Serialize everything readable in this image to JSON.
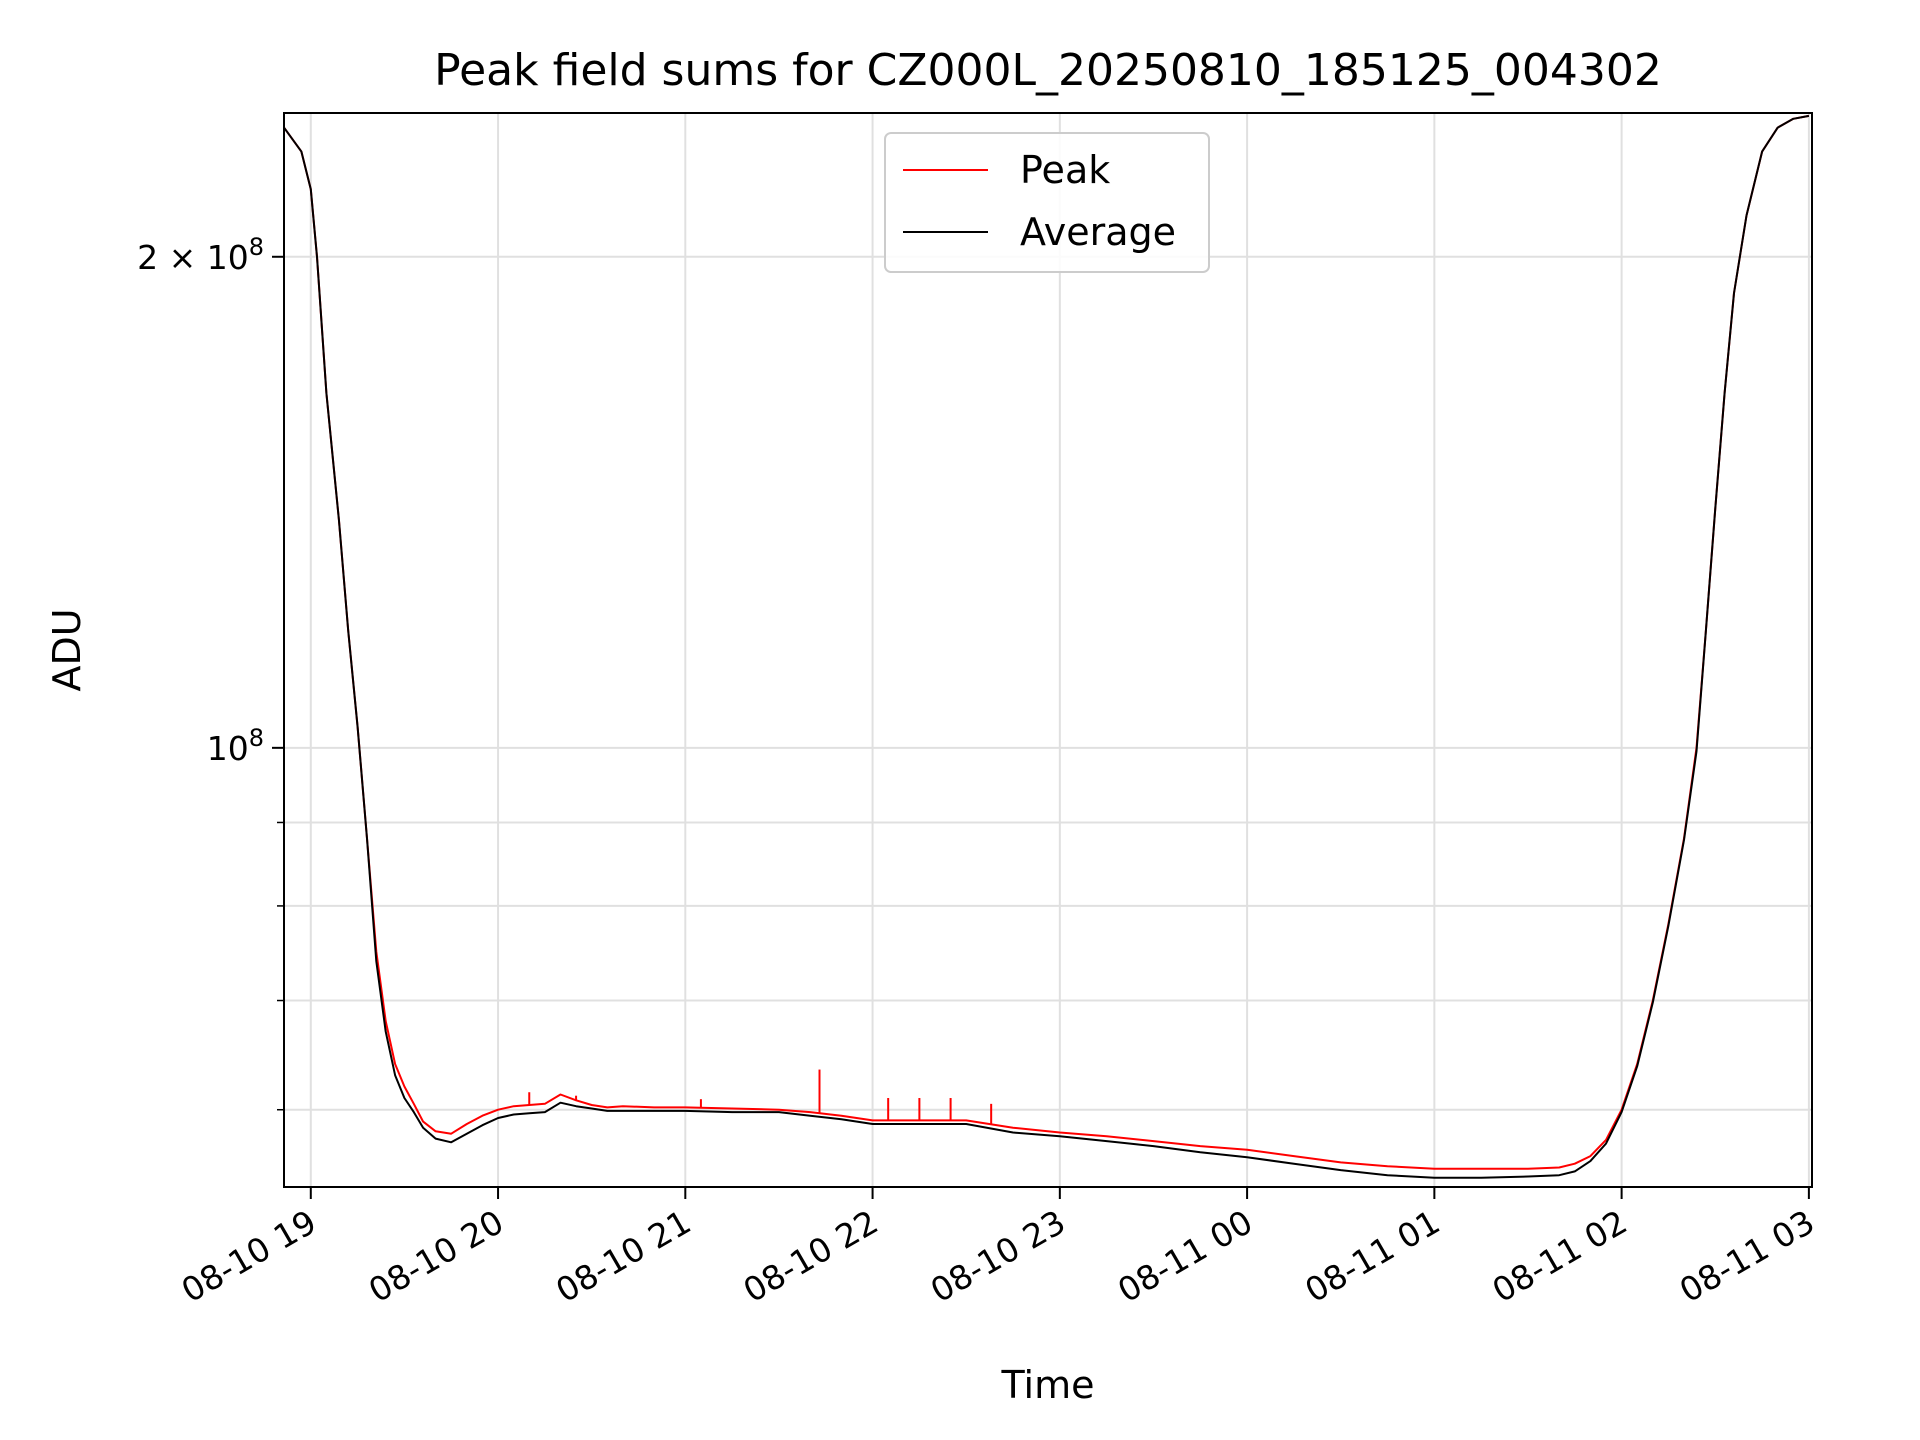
{
  "chart_data": {
    "type": "line",
    "title": "Peak field sums for CZ000L_20250810_185125_004302",
    "xlabel": "Time",
    "ylabel": "ADU",
    "x_axis_type": "datetime",
    "xlim": [
      "2025-08-10 18:51:25",
      "2025-08-11 03:01:00"
    ],
    "y_scale": "log",
    "ylim": [
      53800000,
      245000000
    ],
    "grid": true,
    "legend_position": "top-center",
    "x_ticks": [
      {
        "value": "2025-08-10 19:00",
        "label": "08-10 19"
      },
      {
        "value": "2025-08-10 20:00",
        "label": "08-10 20"
      },
      {
        "value": "2025-08-10 21:00",
        "label": "08-10 21"
      },
      {
        "value": "2025-08-10 22:00",
        "label": "08-10 22"
      },
      {
        "value": "2025-08-10 23:00",
        "label": "08-10 23"
      },
      {
        "value": "2025-08-11 00:00",
        "label": "08-11 00"
      },
      {
        "value": "2025-08-11 01:00",
        "label": "08-11 01"
      },
      {
        "value": "2025-08-11 02:00",
        "label": "08-11 02"
      },
      {
        "value": "2025-08-11 03:00",
        "label": "08-11 03"
      }
    ],
    "y_major_ticks": [
      {
        "value": 100000000,
        "base": "10",
        "exp": "8"
      },
      {
        "value": 200000000,
        "base": "2 × 10",
        "exp": "8"
      }
    ],
    "y_minor_ticks": [
      60000000,
      70000000,
      80000000,
      90000000
    ],
    "series": [
      {
        "name": "Peak",
        "color": "#ff0000",
        "x": [
          "2025-08-10 18:51:25",
          "2025-08-10 18:57:00",
          "2025-08-10 19:00:00",
          "2025-08-10 19:02:00",
          "2025-08-10 19:05:00",
          "2025-08-10 19:09:00",
          "2025-08-10 19:12:00",
          "2025-08-10 19:15:00",
          "2025-08-10 19:18:00",
          "2025-08-10 19:21:00",
          "2025-08-10 19:24:00",
          "2025-08-10 19:27:00",
          "2025-08-10 19:30:00",
          "2025-08-10 19:33:00",
          "2025-08-10 19:36:00",
          "2025-08-10 19:40:00",
          "2025-08-10 19:45:00",
          "2025-08-10 19:50:00",
          "2025-08-10 19:55:00",
          "2025-08-10 20:00:00",
          "2025-08-10 20:05:00",
          "2025-08-10 20:10:00",
          "2025-08-10 20:15:00",
          "2025-08-10 20:20:00",
          "2025-08-10 20:25:00",
          "2025-08-10 20:30:00",
          "2025-08-10 20:35:00",
          "2025-08-10 20:40:00",
          "2025-08-10 20:50:00",
          "2025-08-10 21:00:00",
          "2025-08-10 21:15:00",
          "2025-08-10 21:30:00",
          "2025-08-10 21:40:00",
          "2025-08-10 21:50:00",
          "2025-08-10 22:00:00",
          "2025-08-10 22:15:00",
          "2025-08-10 22:30:00",
          "2025-08-10 22:45:00",
          "2025-08-10 23:00:00",
          "2025-08-10 23:15:00",
          "2025-08-10 23:30:00",
          "2025-08-10 23:45:00",
          "2025-08-11 00:00:00",
          "2025-08-11 00:15:00",
          "2025-08-11 00:30:00",
          "2025-08-11 00:45:00",
          "2025-08-11 01:00:00",
          "2025-08-11 01:15:00",
          "2025-08-11 01:30:00",
          "2025-08-11 01:40:00",
          "2025-08-11 01:45:00",
          "2025-08-11 01:50:00",
          "2025-08-11 01:55:00",
          "2025-08-11 02:00:00",
          "2025-08-11 02:05:00",
          "2025-08-11 02:10:00",
          "2025-08-11 02:15:00",
          "2025-08-11 02:20:00",
          "2025-08-11 02:24:00",
          "2025-08-11 02:27:00",
          "2025-08-11 02:30:00",
          "2025-08-11 02:33:00",
          "2025-08-11 02:36:00",
          "2025-08-11 02:40:00",
          "2025-08-11 02:45:00",
          "2025-08-11 02:50:00",
          "2025-08-11 02:55:00",
          "2025-08-11 03:00:00"
        ],
        "y": [
          240000000,
          232000000,
          220000000,
          200000000,
          165000000,
          138000000,
          118000000,
          103000000,
          88000000,
          75000000,
          68000000,
          64000000,
          62000000,
          60500000,
          59000000,
          58200000,
          58000000,
          58800000,
          59500000,
          60000000,
          60300000,
          60400000,
          60500000,
          61300000,
          60800000,
          60400000,
          60200000,
          60300000,
          60200000,
          60200000,
          60100000,
          60000000,
          59800000,
          59500000,
          59100000,
          59100000,
          59100000,
          58500000,
          58100000,
          57800000,
          57400000,
          57000000,
          56700000,
          56200000,
          55700000,
          55400000,
          55200000,
          55200000,
          55200000,
          55300000,
          55600000,
          56200000,
          57500000,
          60000000,
          64000000,
          70000000,
          78000000,
          88000000,
          100000000,
          118000000,
          140000000,
          165000000,
          190000000,
          212000000,
          232000000,
          240000000,
          243000000,
          244000000
        ],
        "spikes": [
          {
            "x": "2025-08-10 20:10:00",
            "y": 61500000
          },
          {
            "x": "2025-08-10 20:25:00",
            "y": 61200000
          },
          {
            "x": "2025-08-10 21:05:00",
            "y": 60900000
          },
          {
            "x": "2025-08-10 21:43:00",
            "y": 63500000
          },
          {
            "x": "2025-08-10 22:05:00",
            "y": 61000000
          },
          {
            "x": "2025-08-10 22:15:00",
            "y": 61000000
          },
          {
            "x": "2025-08-10 22:25:00",
            "y": 61000000
          },
          {
            "x": "2025-08-10 22:38:00",
            "y": 60500000
          }
        ]
      },
      {
        "name": "Average",
        "color": "#000000",
        "x": [
          "2025-08-10 18:51:25",
          "2025-08-10 18:57:00",
          "2025-08-10 19:00:00",
          "2025-08-10 19:02:00",
          "2025-08-10 19:05:00",
          "2025-08-10 19:09:00",
          "2025-08-10 19:12:00",
          "2025-08-10 19:15:00",
          "2025-08-10 19:18:00",
          "2025-08-10 19:21:00",
          "2025-08-10 19:24:00",
          "2025-08-10 19:27:00",
          "2025-08-10 19:30:00",
          "2025-08-10 19:33:00",
          "2025-08-10 19:36:00",
          "2025-08-10 19:40:00",
          "2025-08-10 19:45:00",
          "2025-08-10 19:50:00",
          "2025-08-10 19:55:00",
          "2025-08-10 20:00:00",
          "2025-08-10 20:05:00",
          "2025-08-10 20:10:00",
          "2025-08-10 20:15:00",
          "2025-08-10 20:20:00",
          "2025-08-10 20:25:00",
          "2025-08-10 20:30:00",
          "2025-08-10 20:35:00",
          "2025-08-10 20:40:00",
          "2025-08-10 20:50:00",
          "2025-08-10 21:00:00",
          "2025-08-10 21:15:00",
          "2025-08-10 21:30:00",
          "2025-08-10 21:40:00",
          "2025-08-10 21:50:00",
          "2025-08-10 22:00:00",
          "2025-08-10 22:15:00",
          "2025-08-10 22:30:00",
          "2025-08-10 22:45:00",
          "2025-08-10 23:00:00",
          "2025-08-10 23:15:00",
          "2025-08-10 23:30:00",
          "2025-08-10 23:45:00",
          "2025-08-11 00:00:00",
          "2025-08-11 00:15:00",
          "2025-08-11 00:30:00",
          "2025-08-11 00:45:00",
          "2025-08-11 01:00:00",
          "2025-08-11 01:15:00",
          "2025-08-11 01:30:00",
          "2025-08-11 01:40:00",
          "2025-08-11 01:45:00",
          "2025-08-11 01:50:00",
          "2025-08-11 01:55:00",
          "2025-08-11 02:00:00",
          "2025-08-11 02:05:00",
          "2025-08-11 02:10:00",
          "2025-08-11 02:15:00",
          "2025-08-11 02:20:00",
          "2025-08-11 02:24:00",
          "2025-08-11 02:27:00",
          "2025-08-11 02:30:00",
          "2025-08-11 02:33:00",
          "2025-08-11 02:36:00",
          "2025-08-11 02:40:00",
          "2025-08-11 02:45:00",
          "2025-08-11 02:50:00",
          "2025-08-11 02:55:00",
          "2025-08-11 03:00:00"
        ],
        "y": [
          240000000,
          232000000,
          220000000,
          200000000,
          165000000,
          138000000,
          118000000,
          103000000,
          88000000,
          74000000,
          67000000,
          63000000,
          61000000,
          59800000,
          58500000,
          57600000,
          57300000,
          58000000,
          58700000,
          59300000,
          59600000,
          59700000,
          59800000,
          60600000,
          60300000,
          60100000,
          59900000,
          59900000,
          59900000,
          59900000,
          59800000,
          59800000,
          59500000,
          59200000,
          58800000,
          58800000,
          58800000,
          58100000,
          57800000,
          57400000,
          57000000,
          56500000,
          56100000,
          55600000,
          55100000,
          54700000,
          54500000,
          54500000,
          54600000,
          54700000,
          55000000,
          55800000,
          57200000,
          59800000,
          63800000,
          69800000,
          77800000,
          87800000,
          99500000,
          118000000,
          140000000,
          165000000,
          190000000,
          212000000,
          232000000,
          240000000,
          243000000,
          244000000
        ]
      }
    ]
  }
}
